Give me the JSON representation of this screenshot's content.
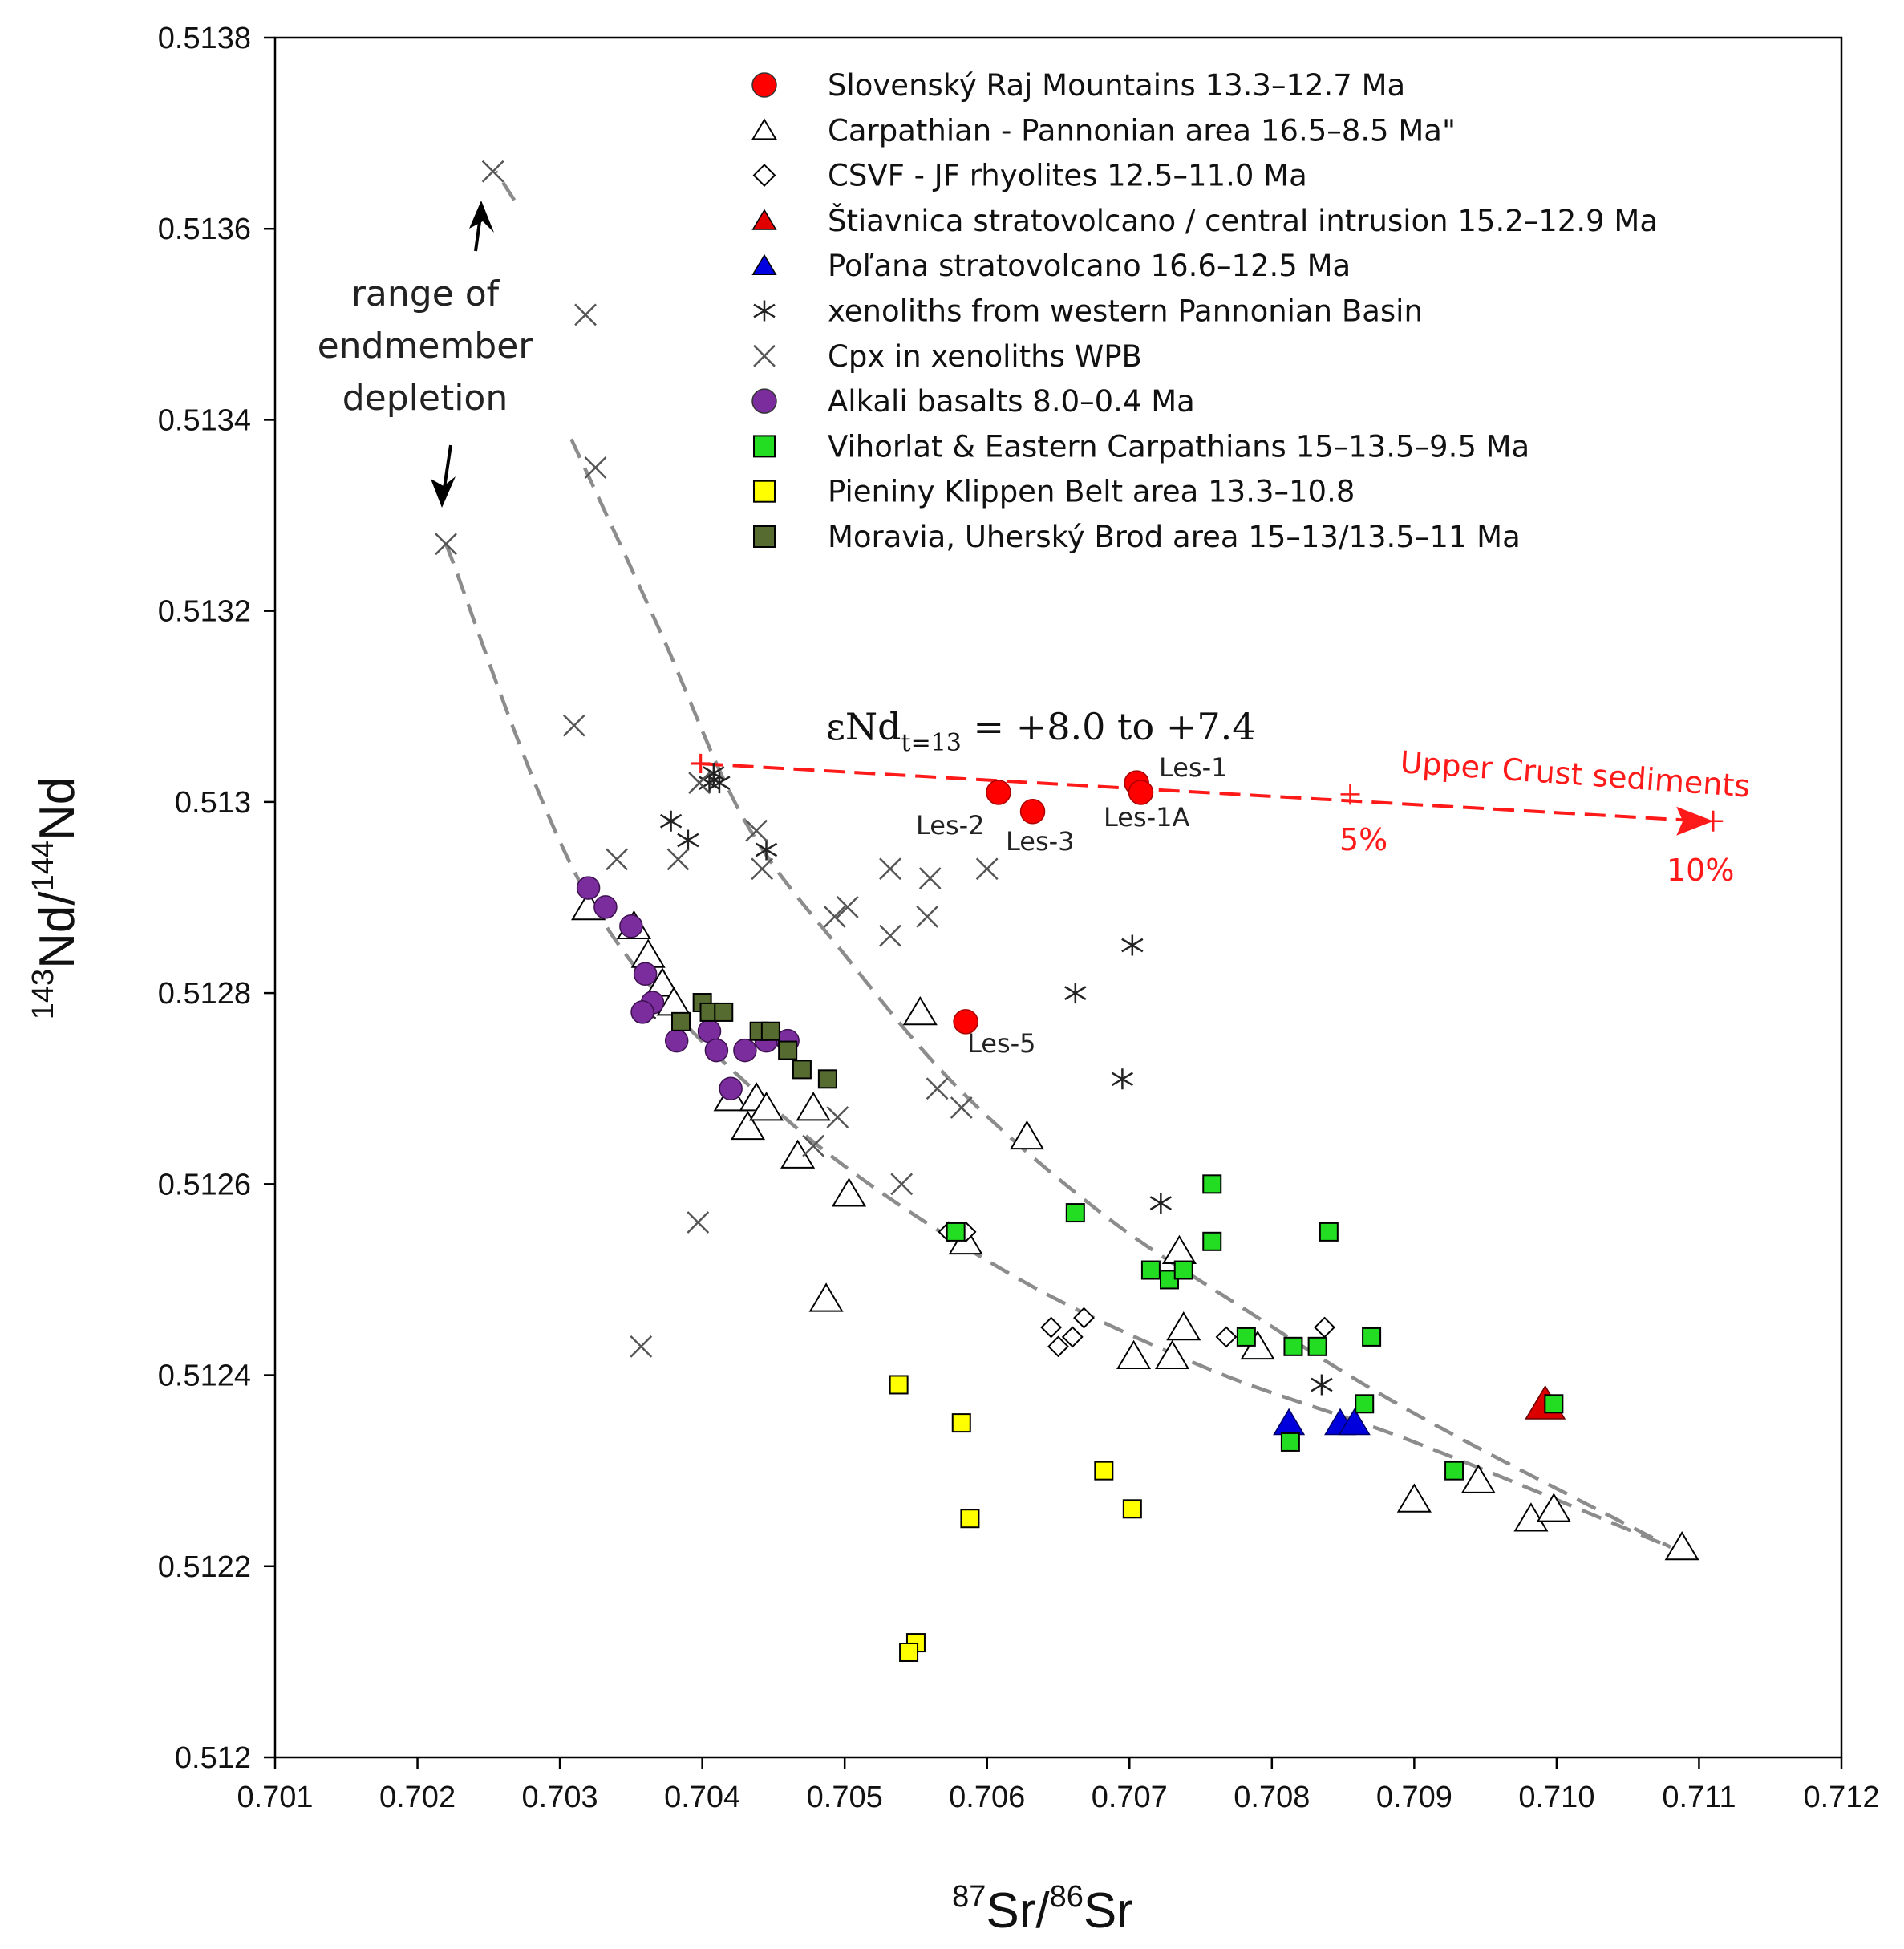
{
  "chart_data": {
    "type": "scatter",
    "xlabel": {
      "sup1": "87",
      "main1": "Sr/",
      "sup2": "86",
      "main2": "Sr"
    },
    "ylabel": {
      "sup1": "143",
      "main1": "Nd/",
      "sup2": "144",
      "main2": "Nd"
    },
    "xlim": [
      0.701,
      0.712
    ],
    "ylim": [
      0.512,
      0.5138
    ],
    "x_ticks": [
      "0.701",
      "0.702",
      "0.703",
      "0.704",
      "0.705",
      "0.706",
      "0.707",
      "0.708",
      "0.709",
      "0.710",
      "0.711",
      "0.712"
    ],
    "y_ticks": [
      "0.512",
      "0.5122",
      "0.5124",
      "0.5126",
      "0.5128",
      "0.513",
      "0.5132",
      "0.5134",
      "0.5136",
      "0.5138"
    ],
    "legend": [
      {
        "label": "Slovenský Raj Mountains  13.3–12.7 Ma",
        "marker": "circle",
        "color": "#ff0000"
      },
      {
        "label": "Carpathian - Pannonian area 16.5–8.5 Ma\"",
        "marker": "triangle-open",
        "color": "#000000"
      },
      {
        "label": "CSVF - JF rhyolites  12.5–11.0 Ma",
        "marker": "diamond-open",
        "color": "#000000"
      },
      {
        "label": "Štiavnica stratovolcano / central intrusion  15.2–12.9 Ma",
        "marker": "triangle",
        "color": "#e00000"
      },
      {
        "label": "Poľana stratovolcano 16.6–12.5 Ma",
        "marker": "triangle",
        "color": "#0000e0"
      },
      {
        "label": "xenoliths from western Pannonian Basin",
        "marker": "asterisk",
        "color": "#000000"
      },
      {
        "label": "Cpx in xenoliths  WPB",
        "marker": "x",
        "color": "#555555"
      },
      {
        "label": "Alkali basalts 8.0–0.4 Ma",
        "marker": "circle",
        "color": "#7b2d9e"
      },
      {
        "label": "Vihorlat & Eastern Carpathians 15–13.5–9.5 Ma",
        "marker": "square",
        "color": "#22dd22"
      },
      {
        "label": "Pieniny Klippen  Belt area 13.3–10.8",
        "marker": "square",
        "color": "#ffff00"
      },
      {
        "label": "Moravia, Uherský Brod area 15–13/13.5–11 Ma",
        "marker": "square",
        "color": "#556b2f"
      }
    ],
    "series": [
      {
        "name": "Slovenský Raj Mountains",
        "marker": "circle",
        "fill": "#ff0000",
        "stroke": "#aa0000",
        "size": 30,
        "points": [
          [
            0.70608,
            0.51301
          ],
          [
            0.70632,
            0.51299
          ],
          [
            0.70705,
            0.51302
          ],
          [
            0.70708,
            0.51301
          ],
          [
            0.70585,
            0.51277
          ]
        ]
      },
      {
        "name": "Carpathian - Pannonian area",
        "marker": "triangle-open",
        "fill": "none",
        "stroke": "#000000",
        "size": 36,
        "points": [
          [
            0.7032,
            0.51289
          ],
          [
            0.70352,
            0.51287
          ],
          [
            0.70362,
            0.51284
          ],
          [
            0.70372,
            0.51281
          ],
          [
            0.7038,
            0.51279
          ],
          [
            0.7042,
            0.51269
          ],
          [
            0.70432,
            0.51266
          ],
          [
            0.70438,
            0.51269
          ],
          [
            0.70445,
            0.51268
          ],
          [
            0.70467,
            0.51263
          ],
          [
            0.70478,
            0.51268
          ],
          [
            0.70503,
            0.51259
          ],
          [
            0.70487,
            0.51248
          ],
          [
            0.70553,
            0.51278
          ],
          [
            0.70628,
            0.51265
          ],
          [
            0.70585,
            0.51254
          ],
          [
            0.70703,
            0.51242
          ],
          [
            0.7073,
            0.51242
          ],
          [
            0.70735,
            0.51253
          ],
          [
            0.70738,
            0.51245
          ],
          [
            0.7079,
            0.51243
          ],
          [
            0.709,
            0.51227
          ],
          [
            0.70945,
            0.51229
          ],
          [
            0.70982,
            0.51225
          ],
          [
            0.70998,
            0.51226
          ],
          [
            0.71088,
            0.51222
          ]
        ]
      },
      {
        "name": "CSVF - JF rhyolites",
        "marker": "diamond-open",
        "fill": "none",
        "stroke": "#000000",
        "size": 24,
        "points": [
          [
            0.70573,
            0.51255
          ],
          [
            0.70585,
            0.51255
          ],
          [
            0.70645,
            0.51245
          ],
          [
            0.7065,
            0.51243
          ],
          [
            0.7066,
            0.51244
          ],
          [
            0.70668,
            0.51246
          ],
          [
            0.70768,
            0.51244
          ],
          [
            0.70837,
            0.51245
          ]
        ]
      },
      {
        "name": "Štiavnica stratovolcano",
        "marker": "triangle",
        "fill": "#dd0000",
        "stroke": "#660000",
        "size": 44,
        "points": [
          [
            0.70992,
            0.51237
          ]
        ]
      },
      {
        "name": "Poľana stratovolcano",
        "marker": "triangle",
        "fill": "#0000dd",
        "stroke": "#000066",
        "size": 34,
        "points": [
          [
            0.70812,
            0.51235
          ],
          [
            0.70848,
            0.51235
          ],
          [
            0.70858,
            0.51235
          ]
        ]
      },
      {
        "name": "xenoliths from western Pannonian Basin",
        "marker": "asterisk",
        "fill": "none",
        "stroke": "#222222",
        "size": 26,
        "points": [
          [
            0.70405,
            0.51302
          ],
          [
            0.70408,
            0.51303
          ],
          [
            0.70412,
            0.51302
          ],
          [
            0.70378,
            0.51298
          ],
          [
            0.7039,
            0.51296
          ],
          [
            0.70445,
            0.51295
          ],
          [
            0.70702,
            0.51285
          ],
          [
            0.70662,
            0.5128
          ],
          [
            0.70695,
            0.51271
          ],
          [
            0.70722,
            0.51258
          ],
          [
            0.70835,
            0.51239
          ],
          [
            0.7036,
            0.51278
          ]
        ]
      },
      {
        "name": "Cpx in xenoliths WPB",
        "marker": "x",
        "fill": "none",
        "stroke": "#555555",
        "size": 26,
        "points": [
          [
            0.70253,
            0.51366
          ],
          [
            0.70318,
            0.51351
          ],
          [
            0.70325,
            0.51335
          ],
          [
            0.7031,
            0.51308
          ],
          [
            0.7034,
            0.51294
          ],
          [
            0.70383,
            0.51294
          ],
          [
            0.70398,
            0.51302
          ],
          [
            0.70438,
            0.51297
          ],
          [
            0.70442,
            0.51293
          ],
          [
            0.70493,
            0.51288
          ],
          [
            0.70502,
            0.51289
          ],
          [
            0.70532,
            0.51293
          ],
          [
            0.7056,
            0.51292
          ],
          [
            0.70532,
            0.51286
          ],
          [
            0.70558,
            0.51288
          ],
          [
            0.706,
            0.51293
          ],
          [
            0.70565,
            0.5127
          ],
          [
            0.70582,
            0.51268
          ],
          [
            0.70478,
            0.51264
          ],
          [
            0.70495,
            0.51267
          ],
          [
            0.7054,
            0.5126
          ],
          [
            0.70397,
            0.51256
          ],
          [
            0.70357,
            0.51243
          ],
          [
            0.7022,
            0.51327
          ]
        ]
      },
      {
        "name": "Alkali basalts",
        "marker": "circle",
        "fill": "#7b2d9e",
        "stroke": "#3d1050",
        "size": 28,
        "points": [
          [
            0.7032,
            0.51291
          ],
          [
            0.70332,
            0.51289
          ],
          [
            0.7035,
            0.51287
          ],
          [
            0.7036,
            0.51282
          ],
          [
            0.70365,
            0.51279
          ],
          [
            0.70358,
            0.51278
          ],
          [
            0.70382,
            0.51275
          ],
          [
            0.70405,
            0.51276
          ],
          [
            0.7041,
            0.51274
          ],
          [
            0.7043,
            0.51274
          ],
          [
            0.70445,
            0.51275
          ],
          [
            0.7046,
            0.51275
          ],
          [
            0.7042,
            0.5127
          ]
        ]
      },
      {
        "name": "Vihorlat & Eastern Carpathians",
        "marker": "square",
        "fill": "#22dd22",
        "stroke": "#000000",
        "size": 22,
        "points": [
          [
            0.70578,
            0.51255
          ],
          [
            0.70662,
            0.51257
          ],
          [
            0.70758,
            0.5126
          ],
          [
            0.70758,
            0.51254
          ],
          [
            0.70715,
            0.51251
          ],
          [
            0.70728,
            0.5125
          ],
          [
            0.70738,
            0.51251
          ],
          [
            0.7084,
            0.51255
          ],
          [
            0.70782,
            0.51244
          ],
          [
            0.70815,
            0.51243
          ],
          [
            0.70832,
            0.51243
          ],
          [
            0.7087,
            0.51244
          ],
          [
            0.70865,
            0.51237
          ],
          [
            0.70813,
            0.51233
          ],
          [
            0.70928,
            0.5123
          ],
          [
            0.70998,
            0.51237
          ]
        ]
      },
      {
        "name": "Pieniny Klippen Belt area",
        "marker": "square",
        "fill": "#ffff00",
        "stroke": "#000000",
        "size": 22,
        "points": [
          [
            0.70538,
            0.51239
          ],
          [
            0.70582,
            0.51235
          ],
          [
            0.70682,
            0.5123
          ],
          [
            0.70588,
            0.51225
          ],
          [
            0.70702,
            0.51226
          ],
          [
            0.7055,
            0.51212
          ],
          [
            0.70545,
            0.51211
          ]
        ]
      },
      {
        "name": "Moravia, Uherský Brod area",
        "marker": "square",
        "fill": "#556b2f",
        "stroke": "#000000",
        "size": 22,
        "points": [
          [
            0.70385,
            0.51277
          ],
          [
            0.704,
            0.51279
          ],
          [
            0.70405,
            0.51278
          ],
          [
            0.70415,
            0.51278
          ],
          [
            0.7044,
            0.51276
          ],
          [
            0.70448,
            0.51276
          ],
          [
            0.7046,
            0.51274
          ],
          [
            0.7047,
            0.51272
          ],
          [
            0.70488,
            0.51271
          ]
        ]
      }
    ],
    "curves": [
      {
        "name": "lower-curve",
        "points": [
          [
            0.7022,
            0.51327
          ],
          [
            0.7032,
            0.5129
          ],
          [
            0.7045,
            0.51268
          ],
          [
            0.706,
            0.51252
          ],
          [
            0.7075,
            0.51241
          ],
          [
            0.709,
            0.51233
          ],
          [
            0.7108,
            0.51222
          ]
        ]
      },
      {
        "name": "upper-curve",
        "points": [
          [
            0.70308,
            0.51338
          ],
          [
            0.7037,
            0.51318
          ],
          [
            0.7043,
            0.51298
          ],
          [
            0.705,
            0.51284
          ],
          [
            0.7058,
            0.5127
          ],
          [
            0.7068,
            0.51257
          ],
          [
            0.7078,
            0.51247
          ],
          [
            0.709,
            0.51236
          ],
          [
            0.7108,
            0.51222
          ]
        ]
      },
      {
        "name": "depletion-arrow",
        "points": [
          [
            0.70268,
            0.51363
          ],
          [
            0.70255,
            0.51366
          ]
        ]
      }
    ],
    "mixing_line": {
      "start": [
        0.704,
        0.51304
      ],
      "end": [
        0.7111,
        0.51298
      ],
      "ticks": [
        [
          0.70855,
          0.513008
        ],
        [
          0.7111,
          0.51298
        ]
      ]
    },
    "annotations": {
      "range_line1": "range of",
      "range_line2": "endmember",
      "range_line3": "depletion",
      "eps_main": "εNd",
      "eps_sub": "t=13",
      "eps_rest": " = +8.0 to +7.4",
      "upper_crust": "Upper Crust  sediments",
      "pct5": "5%",
      "pct10": "10%",
      "les1": "Les-1",
      "les1a": "Les-1A",
      "les2": "Les-2",
      "les3": "Les-3",
      "les5": "Les-5"
    }
  }
}
